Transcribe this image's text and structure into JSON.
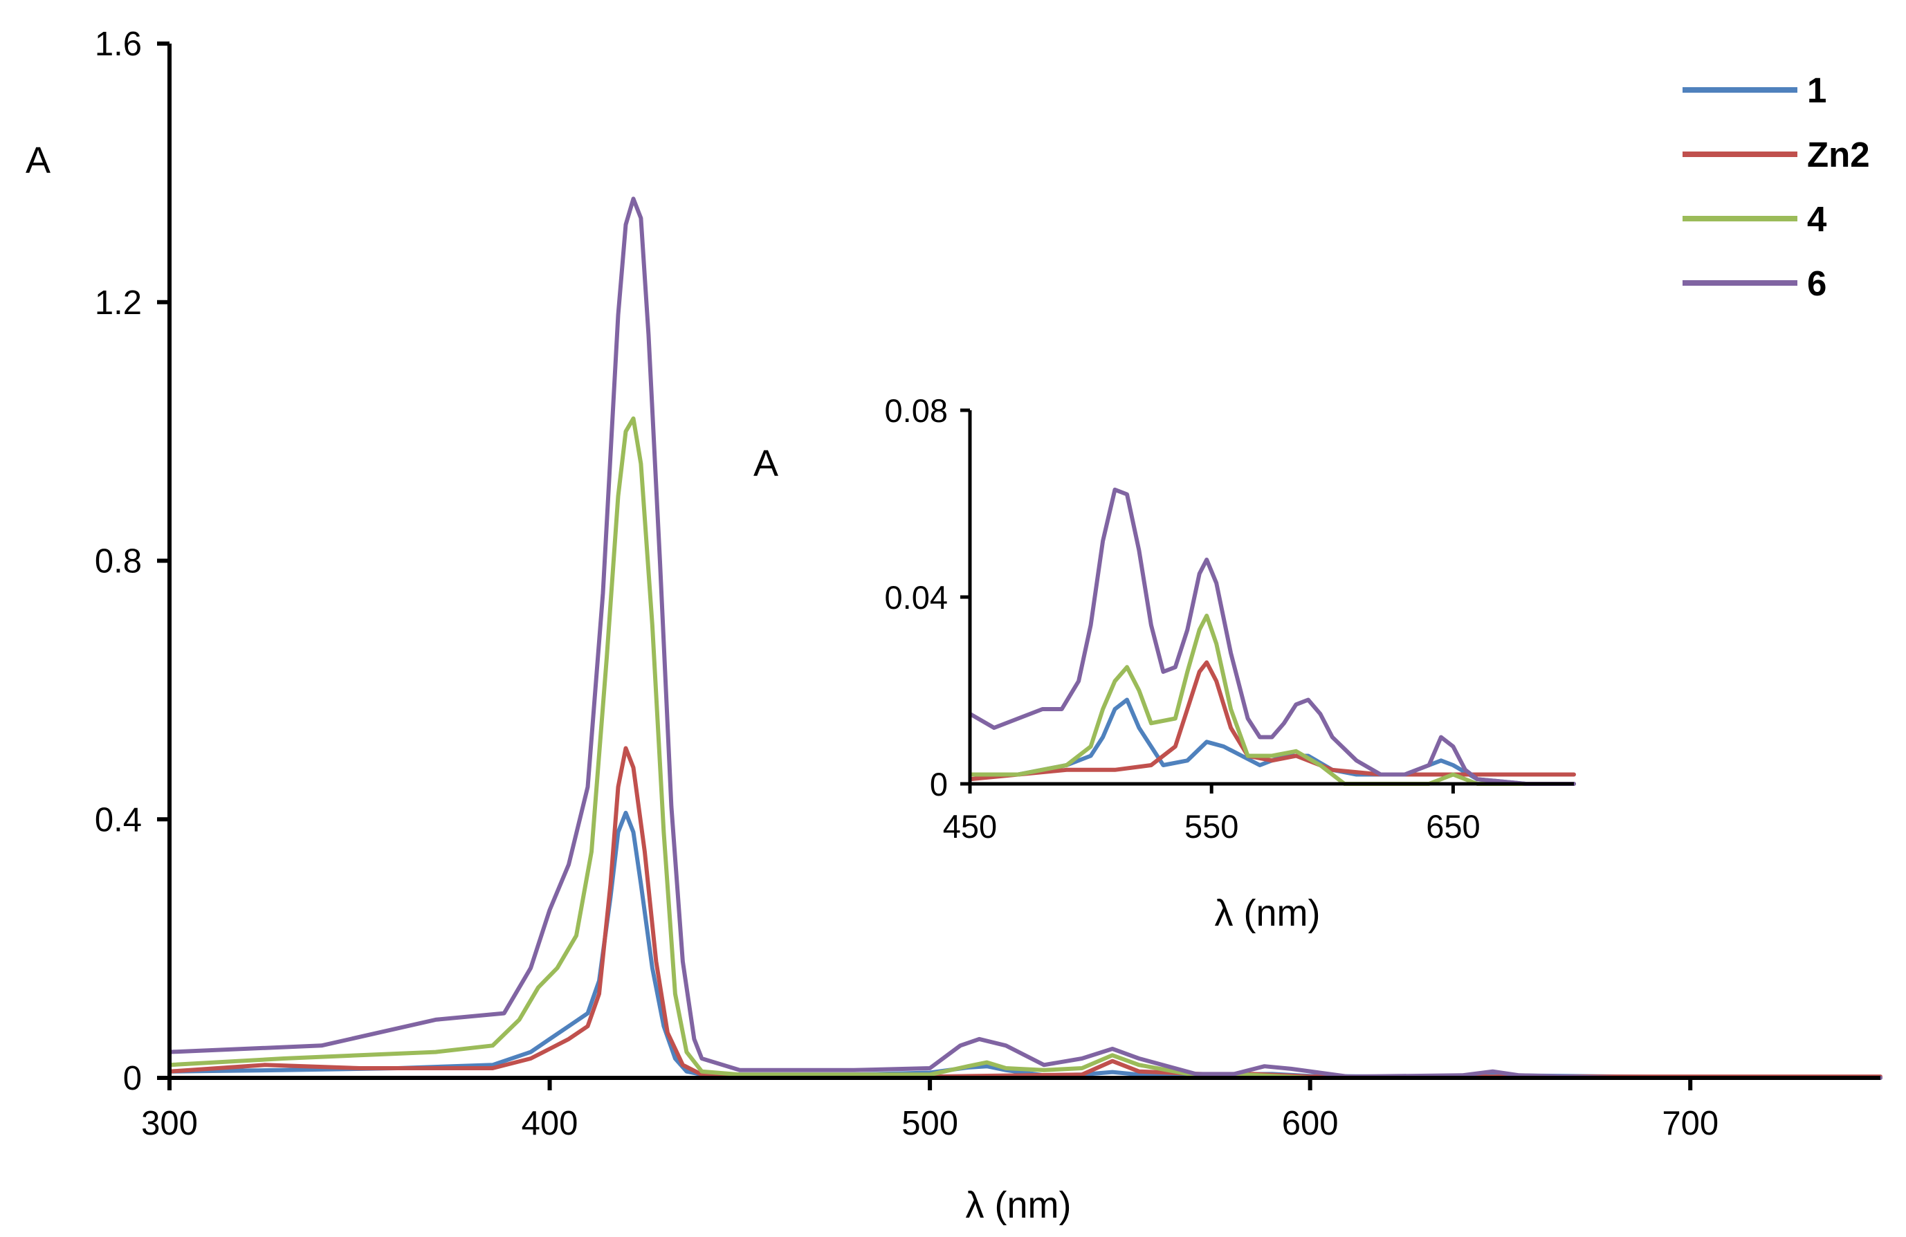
{
  "chart_data": [
    {
      "id": "main",
      "type": "line",
      "title": "",
      "xlabel": "λ (nm)",
      "ylabel": "A",
      "xlim": [
        300,
        750
      ],
      "ylim": [
        0,
        1.6
      ],
      "xticks": [
        300,
        400,
        500,
        600,
        700
      ],
      "xtick_labels": [
        "300",
        "400",
        "500",
        "600",
        "700"
      ],
      "yticks": [
        0,
        0.4,
        0.8,
        1.2,
        1.6
      ],
      "ytick_labels": [
        "0",
        "0.4",
        "0.8",
        "1.2",
        "1.6"
      ],
      "grid": false,
      "legend_position": "top-right",
      "series": [
        {
          "name": "1",
          "color": "#4F81BD",
          "x": [
            300,
            330,
            360,
            385,
            395,
            400,
            405,
            410,
            413,
            416,
            418,
            420,
            422,
            424,
            427,
            430,
            433,
            436,
            440,
            450,
            480,
            500,
            510,
            515,
            520,
            530,
            540,
            548,
            555,
            570,
            590,
            600,
            620,
            650,
            700,
            750
          ],
          "y": [
            0.01,
            0.012,
            0.015,
            0.02,
            0.04,
            0.06,
            0.08,
            0.1,
            0.15,
            0.28,
            0.38,
            0.41,
            0.38,
            0.3,
            0.17,
            0.08,
            0.03,
            0.01,
            0.005,
            0.005,
            0.005,
            0.008,
            0.016,
            0.018,
            0.012,
            0.004,
            0.005,
            0.009,
            0.005,
            0.005,
            0.006,
            0.003,
            0.002,
            0.004,
            0.001,
            0.0
          ]
        },
        {
          "name": "Zn2",
          "color": "#C0504D",
          "x": [
            300,
            325,
            350,
            385,
            395,
            400,
            405,
            410,
            413,
            416,
            418,
            420,
            422,
            425,
            428,
            431,
            435,
            440,
            450,
            500,
            540,
            548,
            555,
            575,
            585,
            600,
            650,
            700,
            750
          ],
          "y": [
            0.01,
            0.02,
            0.015,
            0.015,
            0.03,
            0.045,
            0.06,
            0.08,
            0.13,
            0.3,
            0.45,
            0.51,
            0.48,
            0.35,
            0.18,
            0.07,
            0.02,
            0.005,
            0.002,
            0.002,
            0.005,
            0.026,
            0.01,
            0.005,
            0.006,
            0.002,
            0.002,
            0.002,
            0.002
          ]
        },
        {
          "name": "4",
          "color": "#9BBB59",
          "x": [
            300,
            330,
            370,
            385,
            392,
            397,
            402,
            407,
            411,
            415,
            418,
            420,
            422,
            424,
            427,
            430,
            433,
            436,
            440,
            450,
            500,
            510,
            515,
            520,
            530,
            540,
            548,
            555,
            570,
            580,
            600,
            620,
            650,
            700,
            750
          ],
          "y": [
            0.02,
            0.03,
            0.04,
            0.05,
            0.09,
            0.14,
            0.17,
            0.22,
            0.35,
            0.65,
            0.9,
            1.0,
            1.02,
            0.95,
            0.7,
            0.38,
            0.13,
            0.04,
            0.01,
            0.005,
            0.005,
            0.018,
            0.024,
            0.015,
            0.012,
            0.015,
            0.035,
            0.02,
            0.004,
            0.006,
            0.0,
            0.0,
            0.0,
            0.0,
            0.0
          ]
        },
        {
          "name": "6",
          "color": "#8064A2",
          "x": [
            300,
            340,
            370,
            388,
            395,
            400,
            405,
            410,
            414,
            418,
            420,
            422,
            424,
            426,
            429,
            432,
            435,
            438,
            440,
            450,
            480,
            500,
            508,
            513,
            520,
            530,
            540,
            548,
            555,
            570,
            580,
            588,
            595,
            610,
            640,
            648,
            655,
            680,
            700,
            750
          ],
          "y": [
            0.04,
            0.05,
            0.09,
            0.1,
            0.17,
            0.26,
            0.33,
            0.45,
            0.75,
            1.18,
            1.32,
            1.36,
            1.33,
            1.15,
            0.8,
            0.42,
            0.18,
            0.06,
            0.03,
            0.012,
            0.012,
            0.015,
            0.05,
            0.06,
            0.05,
            0.02,
            0.03,
            0.045,
            0.03,
            0.006,
            0.006,
            0.018,
            0.014,
            0.002,
            0.004,
            0.01,
            0.004,
            0.0,
            0.0,
            0.0
          ]
        }
      ]
    },
    {
      "id": "inset",
      "type": "line",
      "title": "",
      "xlabel": "λ (nm)",
      "ylabel": "A",
      "xlim": [
        450,
        700
      ],
      "ylim": [
        0,
        0.08
      ],
      "xticks": [
        450,
        550,
        650
      ],
      "xtick_labels": [
        "450",
        "550",
        "650"
      ],
      "yticks": [
        0,
        0.04,
        0.08
      ],
      "ytick_labels": [
        "0",
        "0.04",
        "0.08"
      ],
      "grid": false,
      "series": [
        {
          "name": "1",
          "color": "#4F81BD",
          "x": [
            450,
            470,
            490,
            500,
            505,
            510,
            515,
            520,
            530,
            540,
            548,
            555,
            570,
            580,
            590,
            600,
            610,
            630,
            640,
            645,
            650,
            660,
            680,
            700
          ],
          "y": [
            0.002,
            0.002,
            0.004,
            0.006,
            0.01,
            0.016,
            0.018,
            0.012,
            0.004,
            0.005,
            0.009,
            0.008,
            0.004,
            0.006,
            0.006,
            0.003,
            0.002,
            0.002,
            0.004,
            0.005,
            0.004,
            0.001,
            0.0,
            0.0
          ]
        },
        {
          "name": "Zn2",
          "color": "#C0504D",
          "x": [
            450,
            470,
            490,
            510,
            525,
            535,
            540,
            545,
            548,
            552,
            558,
            565,
            575,
            585,
            600,
            620,
            650,
            680,
            700
          ],
          "y": [
            0.001,
            0.002,
            0.003,
            0.003,
            0.004,
            0.008,
            0.016,
            0.024,
            0.026,
            0.022,
            0.012,
            0.006,
            0.005,
            0.006,
            0.003,
            0.002,
            0.002,
            0.002,
            0.002
          ]
        },
        {
          "name": "4",
          "color": "#9BBB59",
          "x": [
            450,
            470,
            490,
            500,
            505,
            510,
            515,
            520,
            525,
            535,
            540,
            545,
            548,
            552,
            558,
            565,
            575,
            585,
            595,
            600,
            605,
            610,
            620,
            640,
            650,
            660,
            700
          ],
          "y": [
            0.002,
            0.002,
            0.004,
            0.008,
            0.016,
            0.022,
            0.025,
            0.02,
            0.013,
            0.014,
            0.024,
            0.033,
            0.036,
            0.03,
            0.016,
            0.006,
            0.006,
            0.007,
            0.004,
            0.002,
            0.0,
            0.0,
            0.0,
            0.0,
            0.002,
            0.0,
            0.0
          ]
        },
        {
          "name": "6",
          "color": "#8064A2",
          "x": [
            450,
            460,
            470,
            480,
            488,
            495,
            500,
            505,
            510,
            515,
            520,
            525,
            530,
            535,
            540,
            545,
            548,
            552,
            558,
            565,
            570,
            575,
            580,
            585,
            590,
            595,
            600,
            610,
            620,
            630,
            640,
            645,
            650,
            655,
            660,
            680,
            700
          ],
          "y": [
            0.015,
            0.012,
            0.014,
            0.016,
            0.016,
            0.022,
            0.034,
            0.052,
            0.063,
            0.062,
            0.05,
            0.034,
            0.024,
            0.025,
            0.033,
            0.045,
            0.048,
            0.043,
            0.028,
            0.014,
            0.01,
            0.01,
            0.013,
            0.017,
            0.018,
            0.015,
            0.01,
            0.005,
            0.002,
            0.002,
            0.004,
            0.01,
            0.008,
            0.003,
            0.001,
            0.0,
            0.0
          ]
        }
      ]
    }
  ],
  "legend": {
    "items": [
      {
        "label": "1",
        "color": "#4F81BD"
      },
      {
        "label": "Zn2",
        "color": "#C0504D"
      },
      {
        "label": "4",
        "color": "#9BBB59"
      },
      {
        "label": "6",
        "color": "#8064A2"
      }
    ]
  }
}
